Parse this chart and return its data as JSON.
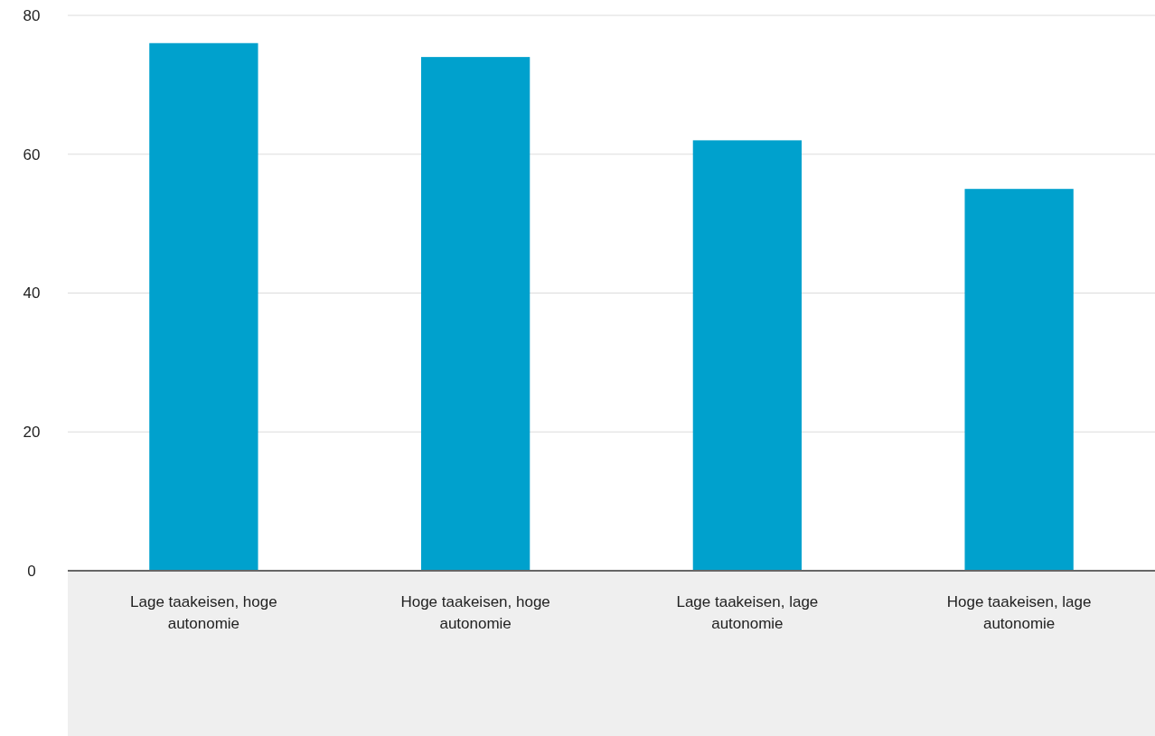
{
  "chart_data": {
    "type": "bar",
    "categories": [
      "Lage taakeisen, hoge autonomie",
      "Hoge taakeisen, hoge autonomie",
      "Lage taakeisen, lage autonomie",
      "Hoge taakeisen, lage autonomie"
    ],
    "values": [
      76,
      74,
      62,
      55
    ],
    "color": "#00a1cd",
    "ylim": [
      0,
      80
    ],
    "yticks": [
      0,
      20,
      40,
      60,
      80
    ],
    "grid": "y"
  }
}
